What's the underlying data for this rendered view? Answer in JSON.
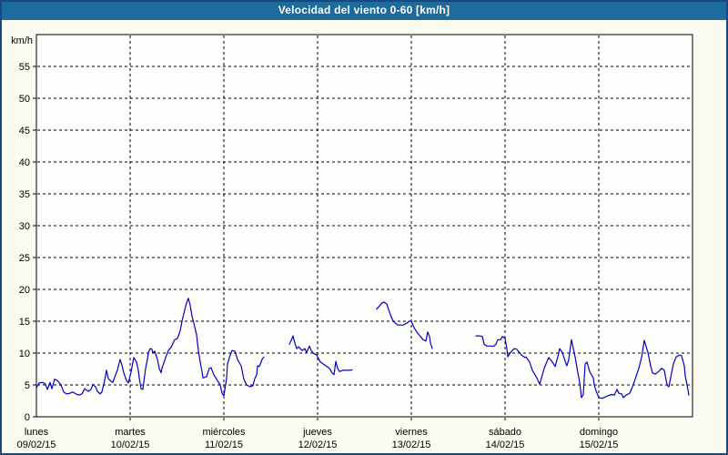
{
  "window": {
    "title": "Velocidad del viento 0-60 [km/h]"
  },
  "colors": {
    "window_border": "#17497e",
    "titlebar_bg": "#1e6a9c",
    "title_text": "#ffffff",
    "background": "#fbfbf2",
    "plot_bg": "#fefefc",
    "axis": "#000000",
    "grid": "#000000",
    "text": "#000000",
    "line": "#0000c8"
  },
  "chart_data": {
    "type": "line",
    "title": "Velocidad del viento 0-60 [km/h]",
    "ylabel": "km/h",
    "xlabel": "",
    "ylim": [
      0,
      60
    ],
    "ytick_interval": 5,
    "ytick_labels": [
      "0",
      "5",
      "10",
      "15",
      "20",
      "25",
      "30",
      "35",
      "40",
      "45",
      "50",
      "55"
    ],
    "grid": true,
    "grid_style": "dashed",
    "legend": "none",
    "x_axis": {
      "unit": "days",
      "range": [
        0,
        7
      ],
      "day_labels": [
        {
          "name": "lunes",
          "date": "09/02/15"
        },
        {
          "name": "martes",
          "date": "10/02/15"
        },
        {
          "name": "miércoles",
          "date": "11/02/15"
        },
        {
          "name": "jueves",
          "date": "12/02/15"
        },
        {
          "name": "viernes",
          "date": "13/02/15"
        },
        {
          "name": "sábado",
          "date": "14/02/15"
        },
        {
          "name": "domingo",
          "date": "15/02/15"
        }
      ]
    },
    "series": [
      {
        "name": "wind_speed_kmh",
        "segments": [
          [
            [
              0,
              4.5
            ],
            [
              0.029,
              5.3
            ],
            [
              0.068,
              5.4
            ],
            [
              0.097,
              5.1
            ],
            [
              0.117,
              4.3
            ],
            [
              0.146,
              5.4
            ],
            [
              0.165,
              4.4
            ],
            [
              0.194,
              5.9
            ],
            [
              0.223,
              5.7
            ],
            [
              0.262,
              5
            ],
            [
              0.291,
              3.9
            ],
            [
              0.32,
              3.6
            ],
            [
              0.359,
              3.7
            ],
            [
              0.388,
              3.9
            ],
            [
              0.417,
              3.6
            ],
            [
              0.456,
              3.4
            ],
            [
              0.485,
              3.6
            ],
            [
              0.515,
              4.4
            ],
            [
              0.553,
              4
            ],
            [
              0.583,
              4.3
            ],
            [
              0.602,
              5.1
            ],
            [
              0.631,
              4.7
            ],
            [
              0.65,
              4
            ],
            [
              0.68,
              3.6
            ],
            [
              0.699,
              3.9
            ],
            [
              0.728,
              5.7
            ],
            [
              0.748,
              7.3
            ],
            [
              0.767,
              6
            ],
            [
              0.786,
              5.7
            ],
            [
              0.816,
              5.4
            ],
            [
              0.845,
              6.6
            ],
            [
              0.864,
              7.3
            ],
            [
              0.893,
              9
            ],
            [
              0.913,
              8.1
            ],
            [
              0.932,
              6.9
            ],
            [
              0.961,
              5.7
            ],
            [
              0.981,
              5.3
            ],
            [
              1.01,
              7
            ],
            [
              1.039,
              9.3
            ],
            [
              1.068,
              8.6
            ],
            [
              1.087,
              7.3
            ],
            [
              1.097,
              6.1
            ],
            [
              1.117,
              4.4
            ],
            [
              1.136,
              4.3
            ],
            [
              1.146,
              5.4
            ],
            [
              1.165,
              7.6
            ],
            [
              1.184,
              9
            ],
            [
              1.194,
              10.1
            ],
            [
              1.214,
              10.7
            ],
            [
              1.233,
              10.6
            ],
            [
              1.243,
              10
            ],
            [
              1.262,
              10.3
            ],
            [
              1.291,
              9
            ],
            [
              1.311,
              7.6
            ],
            [
              1.33,
              6.9
            ],
            [
              1.34,
              7.6
            ],
            [
              1.379,
              9.3
            ],
            [
              1.408,
              10.4
            ],
            [
              1.437,
              10.9
            ],
            [
              1.476,
              12.1
            ],
            [
              1.505,
              12.3
            ],
            [
              1.534,
              13.5
            ],
            [
              1.553,
              15
            ],
            [
              1.583,
              16.8
            ],
            [
              1.602,
              17.9
            ],
            [
              1.621,
              18.6
            ],
            [
              1.641,
              17.5
            ],
            [
              1.66,
              15.8
            ],
            [
              1.68,
              14.7
            ],
            [
              1.709,
              12.9
            ],
            [
              1.728,
              10.4
            ],
            [
              1.748,
              8.6
            ],
            [
              1.767,
              7.1
            ],
            [
              1.777,
              6.1
            ],
            [
              1.796,
              6.2
            ],
            [
              1.816,
              6.3
            ],
            [
              1.845,
              7.6
            ],
            [
              1.864,
              7.7
            ],
            [
              1.893,
              6.6
            ],
            [
              1.922,
              5.9
            ],
            [
              1.961,
              5
            ],
            [
              1.981,
              3.7
            ],
            [
              2,
              3.3
            ],
            [
              2.029,
              6
            ],
            [
              2.039,
              8.3
            ],
            [
              2.068,
              9.7
            ],
            [
              2.087,
              10.4
            ],
            [
              2.117,
              10.3
            ],
            [
              2.146,
              9
            ],
            [
              2.184,
              8
            ],
            [
              2.214,
              5.9
            ],
            [
              2.243,
              5
            ],
            [
              2.282,
              4.7
            ],
            [
              2.311,
              4.9
            ],
            [
              2.33,
              6
            ],
            [
              2.35,
              6.6
            ],
            [
              2.359,
              8
            ],
            [
              2.379,
              7.9
            ],
            [
              2.408,
              9
            ],
            [
              2.427,
              9.4
            ]
          ],
          [
            [
              2.699,
              11.4
            ],
            [
              2.718,
              12
            ],
            [
              2.738,
              12.7
            ],
            [
              2.757,
              11.6
            ],
            [
              2.777,
              10.7
            ],
            [
              2.796,
              11
            ],
            [
              2.835,
              10.4
            ],
            [
              2.864,
              10.7
            ],
            [
              2.883,
              10.1
            ],
            [
              2.913,
              11.1
            ],
            [
              2.932,
              10.4
            ],
            [
              2.961,
              9.9
            ],
            [
              2.99,
              9.7
            ],
            [
              3.029,
              8.6
            ],
            [
              3.058,
              8.3
            ],
            [
              3.087,
              8
            ],
            [
              3.126,
              7.6
            ],
            [
              3.155,
              6.9
            ],
            [
              3.175,
              6.6
            ],
            [
              3.194,
              8.7
            ],
            [
              3.214,
              7.6
            ],
            [
              3.233,
              7.1
            ],
            [
              3.272,
              7.3
            ],
            [
              3.311,
              7.3
            ],
            [
              3.35,
              7.3
            ],
            [
              3.369,
              7.4
            ]
          ],
          [
            [
              3.631,
              16.9
            ],
            [
              3.66,
              17.4
            ],
            [
              3.689,
              17.9
            ],
            [
              3.709,
              18
            ],
            [
              3.738,
              17.7
            ],
            [
              3.767,
              16.4
            ],
            [
              3.796,
              15.3
            ],
            [
              3.816,
              14.9
            ],
            [
              3.854,
              14.4
            ],
            [
              3.883,
              14.4
            ],
            [
              3.913,
              14.4
            ],
            [
              3.951,
              14.7
            ],
            [
              3.981,
              15
            ],
            [
              4,
              15
            ],
            [
              4.029,
              14
            ],
            [
              4.058,
              13.3
            ],
            [
              4.097,
              12.6
            ],
            [
              4.126,
              12.1
            ],
            [
              4.155,
              11.9
            ],
            [
              4.175,
              13.3
            ],
            [
              4.194,
              12.6
            ],
            [
              4.204,
              11.6
            ],
            [
              4.223,
              10.7
            ]
          ],
          [
            [
              4.689,
              12.7
            ],
            [
              4.728,
              12.7
            ],
            [
              4.757,
              12.6
            ],
            [
              4.777,
              11.4
            ],
            [
              4.806,
              11.1
            ],
            [
              4.845,
              11.1
            ],
            [
              4.883,
              11.1
            ],
            [
              4.903,
              11.4
            ],
            [
              4.922,
              12.1
            ],
            [
              4.951,
              12.1
            ],
            [
              4.971,
              12.6
            ],
            [
              5,
              12.3
            ],
            [
              5.019,
              10.7
            ],
            [
              5.029,
              9.4
            ],
            [
              5.049,
              9.9
            ],
            [
              5.078,
              10.4
            ],
            [
              5.097,
              10.7
            ],
            [
              5.126,
              10.6
            ],
            [
              5.155,
              10
            ],
            [
              5.175,
              9.7
            ],
            [
              5.214,
              9.3
            ],
            [
              5.223,
              9.4
            ],
            [
              5.262,
              8.6
            ],
            [
              5.291,
              7.3
            ],
            [
              5.34,
              6.1
            ],
            [
              5.369,
              5.1
            ],
            [
              5.398,
              6.6
            ],
            [
              5.417,
              7.6
            ],
            [
              5.437,
              8.3
            ],
            [
              5.466,
              9.3
            ],
            [
              5.505,
              8.6
            ],
            [
              5.534,
              7.9
            ],
            [
              5.563,
              9.4
            ],
            [
              5.583,
              10.7
            ],
            [
              5.612,
              10.1
            ],
            [
              5.65,
              8.3
            ],
            [
              5.66,
              8
            ],
            [
              5.68,
              9
            ],
            [
              5.709,
              12.1
            ],
            [
              5.748,
              9.4
            ],
            [
              5.777,
              6.9
            ],
            [
              5.796,
              5.4
            ],
            [
              5.816,
              3
            ],
            [
              5.835,
              3.5
            ],
            [
              5.854,
              8.3
            ],
            [
              5.874,
              8.6
            ],
            [
              5.903,
              7.1
            ],
            [
              5.942,
              6.1
            ],
            [
              5.951,
              5
            ],
            [
              5.971,
              4.1
            ],
            [
              6,
              3
            ],
            [
              6.039,
              2.9
            ],
            [
              6.068,
              3.1
            ],
            [
              6.097,
              3.3
            ],
            [
              6.136,
              3.5
            ],
            [
              6.165,
              3.4
            ],
            [
              6.194,
              4.3
            ],
            [
              6.214,
              3.7
            ],
            [
              6.243,
              3.6
            ],
            [
              6.262,
              3
            ],
            [
              6.291,
              3.4
            ],
            [
              6.33,
              3.7
            ],
            [
              6.359,
              4.7
            ],
            [
              6.388,
              5.9
            ],
            [
              6.427,
              7.6
            ],
            [
              6.456,
              9.3
            ],
            [
              6.485,
              12
            ],
            [
              6.524,
              10.1
            ],
            [
              6.553,
              8
            ],
            [
              6.573,
              6.9
            ],
            [
              6.602,
              6.7
            ],
            [
              6.631,
              7
            ],
            [
              6.67,
              7.6
            ],
            [
              6.699,
              7.3
            ],
            [
              6.728,
              5
            ],
            [
              6.748,
              4.7
            ],
            [
              6.777,
              6.9
            ],
            [
              6.796,
              8.3
            ],
            [
              6.825,
              9.4
            ],
            [
              6.864,
              9.7
            ],
            [
              6.883,
              9.6
            ],
            [
              6.913,
              8
            ],
            [
              6.922,
              6.4
            ],
            [
              6.942,
              5
            ],
            [
              6.961,
              3.4
            ]
          ]
        ]
      }
    ]
  }
}
